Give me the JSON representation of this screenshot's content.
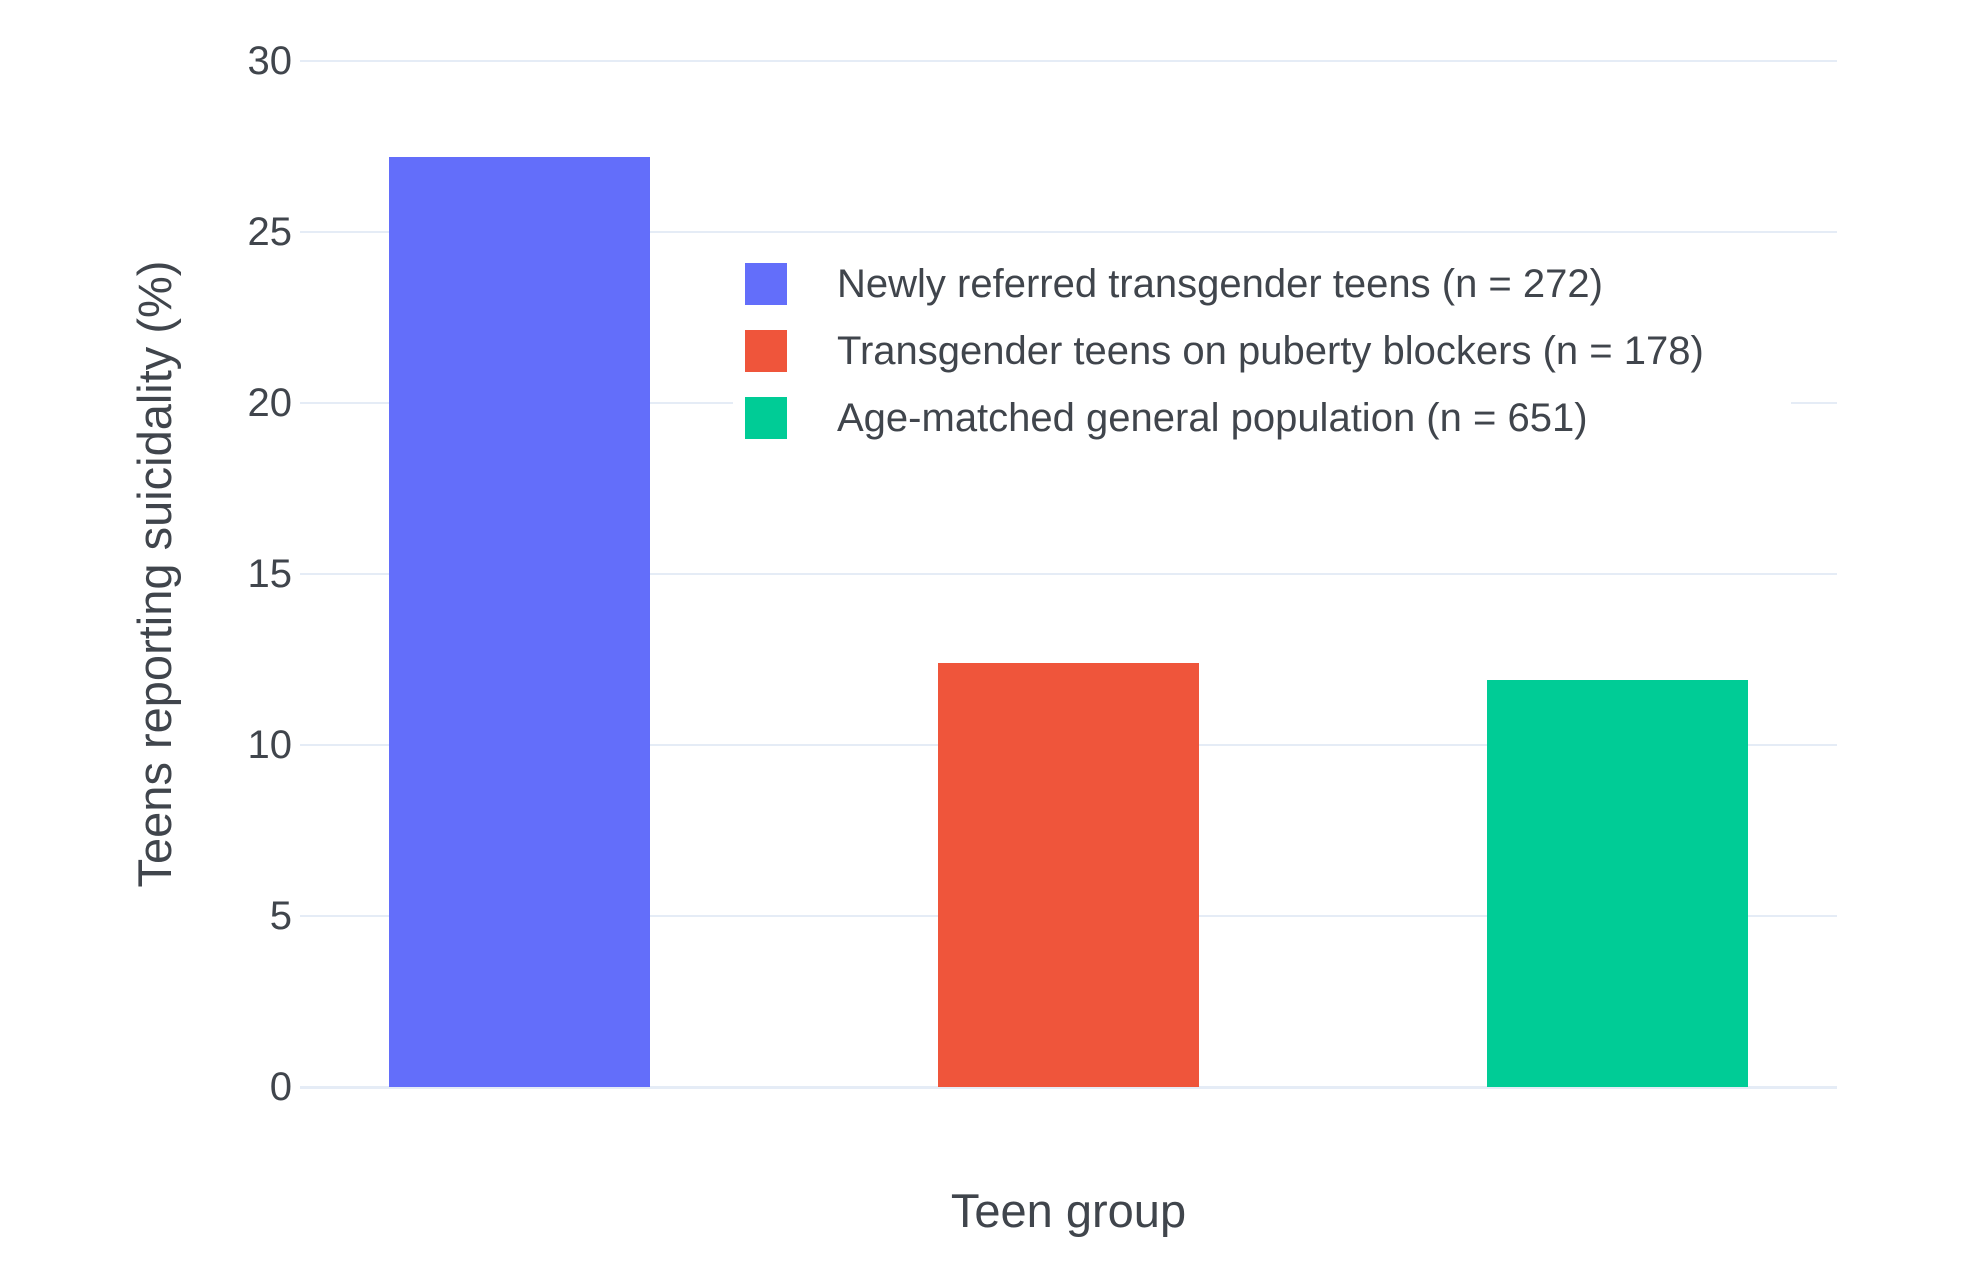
{
  "colors": {
    "background": "#FFFFFF",
    "grid": "#E5ECF6",
    "text": "#40454C"
  },
  "chart_data": {
    "type": "bar",
    "xlabel": "Teen group",
    "ylabel": "Teens reporting suicidality (%)",
    "ylim": [
      0,
      30
    ],
    "yticks": [
      0,
      5,
      10,
      15,
      20,
      25,
      30
    ],
    "grid": true,
    "x_tick_labels": [],
    "legend_position": "inside top-right",
    "series": [
      {
        "name": "Newly referred transgender teens (n = 272)",
        "value": 27.2,
        "color": "#636EFA"
      },
      {
        "name": "Transgender teens on puberty blockers (n = 178)",
        "value": 12.4,
        "color": "#EF553B"
      },
      {
        "name": "Age-matched general population (n = 651)",
        "value": 11.9,
        "color": "#00CC96"
      }
    ]
  }
}
